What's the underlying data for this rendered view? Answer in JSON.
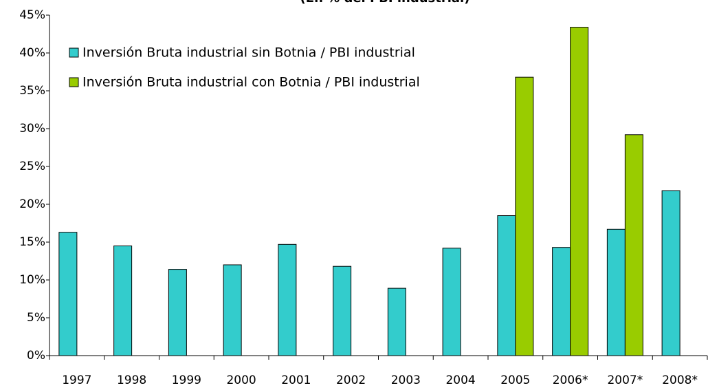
{
  "chart_data": {
    "type": "bar",
    "title": "(En % del PBI industrial)",
    "categories": [
      "1997",
      "1998",
      "1999",
      "2000",
      "2001",
      "2002",
      "2003",
      "2004",
      "2005",
      "2006*",
      "2007*",
      "2008*"
    ],
    "series": [
      {
        "name": "Inversión Bruta industrial sin Botnia / PBI industrial",
        "color": "#33cccc",
        "values": [
          16.3,
          14.5,
          11.4,
          12.0,
          14.7,
          11.8,
          8.9,
          14.2,
          18.5,
          14.3,
          16.7,
          21.8
        ]
      },
      {
        "name": "Inversión Bruta industrial con Botnia / PBI industrial",
        "color": "#99cc00",
        "values": [
          null,
          null,
          null,
          null,
          null,
          null,
          null,
          null,
          36.8,
          43.4,
          29.2,
          null
        ]
      }
    ],
    "ylim": [
      0,
      45
    ],
    "yticks": [
      {
        "value": 0,
        "label": "0%"
      },
      {
        "value": 5,
        "label": "5%"
      },
      {
        "value": 10,
        "label": "10%"
      },
      {
        "value": 15,
        "label": "15%"
      },
      {
        "value": 20,
        "label": "20%"
      },
      {
        "value": 25,
        "label": "25%"
      },
      {
        "value": 30,
        "label": "30%"
      },
      {
        "value": 35,
        "label": "35%"
      },
      {
        "value": 40,
        "label": "40%"
      },
      {
        "value": 45,
        "label": "45%"
      }
    ],
    "legend": "top-left"
  }
}
